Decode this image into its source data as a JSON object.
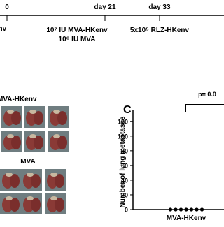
{
  "timeline": {
    "points": [
      {
        "day": "0",
        "label": "env"
      },
      {
        "day": "day 21",
        "label": "10⁷ IU MVA-HKenv",
        "label2": "10⁸ IU MVA"
      },
      {
        "day": "day 33",
        "label": "5x10⁵ RLZ-HKenv"
      }
    ]
  },
  "panel_b": {
    "groups": [
      "MVA-HKenv",
      "MVA"
    ]
  },
  "chart_data": {
    "type": "dot",
    "panel": "C",
    "ylabel": "Number of lung metastases",
    "categories": [
      "MVA-HKenv"
    ],
    "values": [
      [
        0,
        0,
        0,
        0,
        0,
        0,
        0
      ]
    ],
    "color": "#000000",
    "ylim": [
      0,
      135
    ],
    "yticks": [
      0,
      20,
      40,
      60,
      80,
      100,
      120
    ],
    "annotation": "p= 0.0"
  }
}
